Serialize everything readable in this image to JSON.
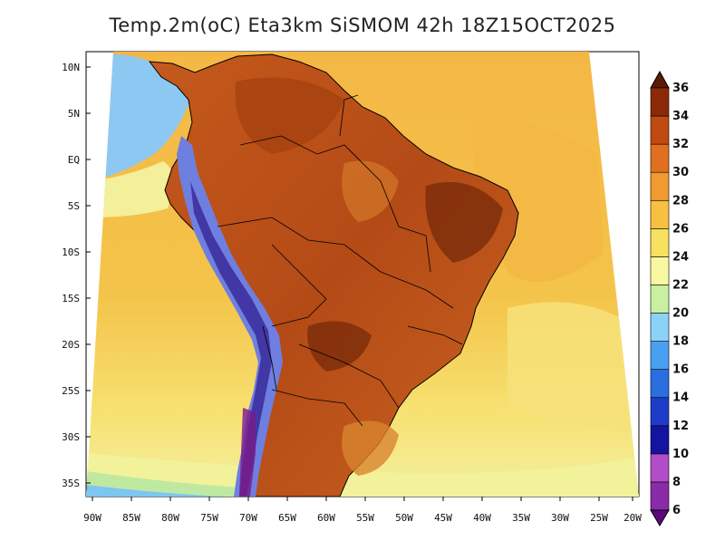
{
  "title": "Temp.2m(oC) Eta3km SiSMOM 42h 18Z15OCT2025",
  "lat_labels": [
    "10N",
    "5N",
    "EQ",
    "5S",
    "10S",
    "15S",
    "20S",
    "25S",
    "30S",
    "35S"
  ],
  "lon_labels": [
    "90W",
    "85W",
    "80W",
    "75W",
    "70W",
    "65W",
    "60W",
    "55W",
    "50W",
    "45W",
    "40W",
    "35W",
    "30W",
    "25W",
    "20W"
  ],
  "colorbar": {
    "unit": "oC",
    "levels": [
      "6",
      "8",
      "10",
      "12",
      "14",
      "16",
      "18",
      "20",
      "22",
      "24",
      "26",
      "28",
      "30",
      "32",
      "34",
      "36"
    ],
    "colors": [
      "#5c0a7a",
      "#8a2aa8",
      "#b24cc8",
      "#1414a0",
      "#1e3cc8",
      "#2a6ee0",
      "#4aa0f0",
      "#8cd2f8",
      "#c8f0a0",
      "#f8f8a0",
      "#f8e060",
      "#f8c040",
      "#f09a30",
      "#e07020",
      "#c04a10",
      "#8a2a08",
      "#5a1a05"
    ]
  },
  "colors": {
    "ocean_warm": "#f6c84a",
    "ocean_mid": "#f7dd5e",
    "ocean_cool": "#f5f59a",
    "land_hot": "#c0501a",
    "land_very_hot": "#8a3510",
    "andes_cold": "#3a3ad0"
  }
}
